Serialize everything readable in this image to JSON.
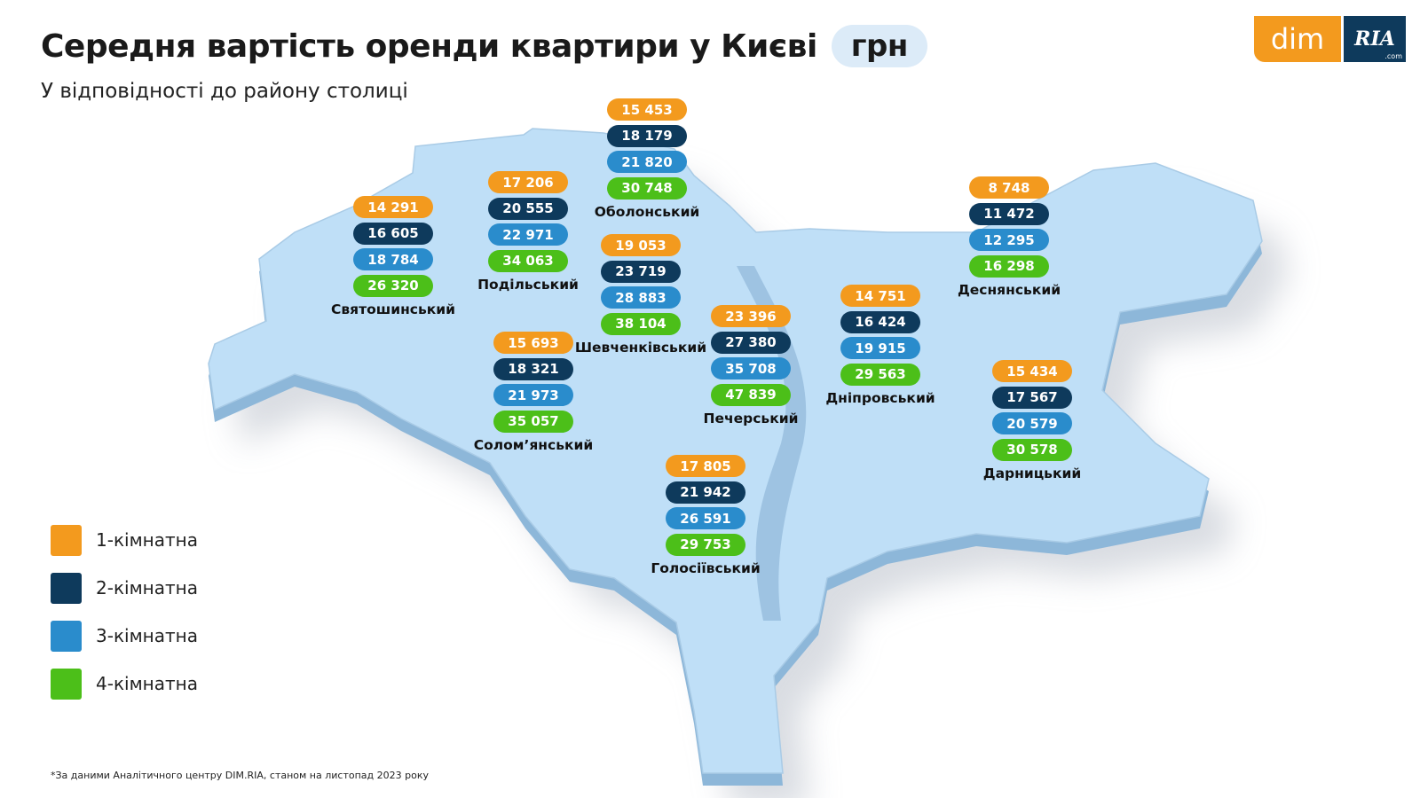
{
  "header": {
    "title": "Середня вартість оренди квартири у Києві",
    "unit": "грн",
    "subtitle": "У відповідності до району столиці"
  },
  "logo": {
    "dim": "dim",
    "ria": "RIA",
    ".com": ".com"
  },
  "colors": {
    "1-room": "#f39a1e",
    "2-room": "#0e3a5c",
    "3-room": "#2a8ccc",
    "4-room": "#4cbf19",
    "map_top": "#bfdff7",
    "map_side": "#8db7d9"
  },
  "legend": [
    {
      "label": "1-кімнатна",
      "color": "#f39a1e"
    },
    {
      "label": "2-кімнатна",
      "color": "#0e3a5c"
    },
    {
      "label": "3-кімнатна",
      "color": "#2a8ccc"
    },
    {
      "label": "4-кімнатна",
      "color": "#4cbf19"
    }
  ],
  "districts": [
    {
      "name": "Оболонський",
      "values": [
        "15 453",
        "18 179",
        "21 820",
        "30 748"
      ]
    },
    {
      "name": "Подільський",
      "values": [
        "17 206",
        "20 555",
        "22 971",
        "34 063"
      ]
    },
    {
      "name": "Святошинський",
      "values": [
        "14 291",
        "16 605",
        "18 784",
        "26 320"
      ]
    },
    {
      "name": "Шевченківський",
      "values": [
        "19 053",
        "23 719",
        "28 883",
        "38 104"
      ]
    },
    {
      "name": "Печерський",
      "values": [
        "23 396",
        "27 380",
        "35 708",
        "47 839"
      ]
    },
    {
      "name": "Солом’янський",
      "values": [
        "15 693",
        "18 321",
        "21 973",
        "35 057"
      ]
    },
    {
      "name": "Дніпровський",
      "values": [
        "14 751",
        "16 424",
        "19 915",
        "29 563"
      ]
    },
    {
      "name": "Деснянський",
      "values": [
        "8 748",
        "11 472",
        "12 295",
        "16 298"
      ]
    },
    {
      "name": "Дарницький",
      "values": [
        "15 434",
        "17 567",
        "20 579",
        "30 578"
      ]
    },
    {
      "name": "Голосіївський",
      "values": [
        "17 805",
        "21 942",
        "26 591",
        "29 753"
      ]
    }
  ],
  "footnote": "*За даними Аналітичного центру DIM.RIA, станом на листопад 2023 року"
}
